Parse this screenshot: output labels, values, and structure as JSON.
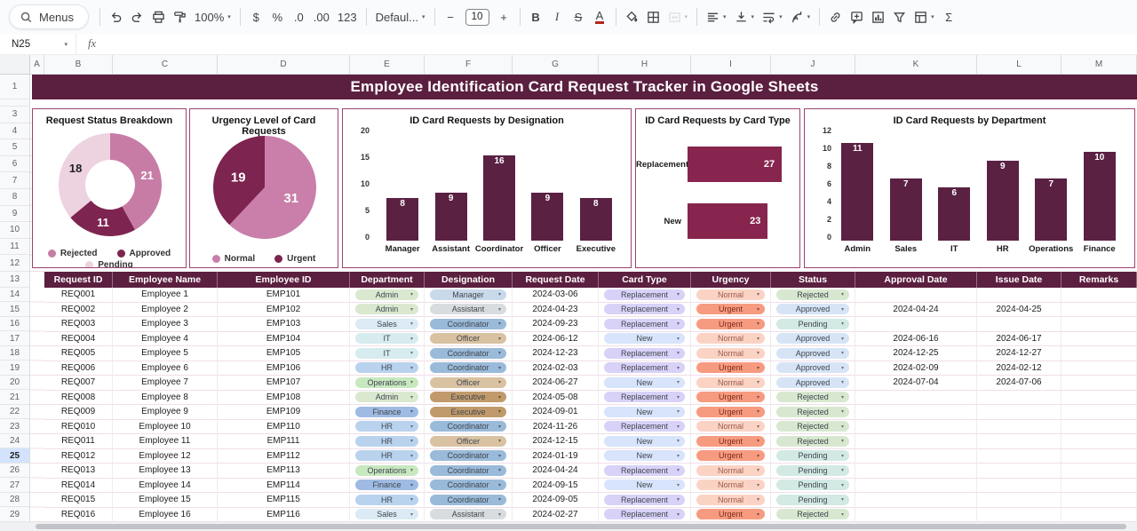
{
  "toolbar": {
    "groups": [
      [
        {
          "name": "menus-search",
          "label": "Menus",
          "icon": "search",
          "pill": true
        }
      ],
      [
        {
          "name": "undo",
          "icon": "undo"
        },
        {
          "name": "redo",
          "icon": "redo"
        },
        {
          "name": "print",
          "icon": "print"
        },
        {
          "name": "paint-format",
          "icon": "paint-roller"
        },
        {
          "name": "zoom-select",
          "label": "100%",
          "dropdown": true
        }
      ],
      [
        {
          "name": "format-currency",
          "label": "$"
        },
        {
          "name": "format-percent",
          "label": "%"
        },
        {
          "name": "decrease-decimal-places",
          "label": ".0"
        },
        {
          "name": "increase-decimal-places",
          "label": ".00"
        },
        {
          "name": "more-formats",
          "label": "123"
        }
      ],
      [
        {
          "name": "font-family-select",
          "label": "Defaul...",
          "dropdown": true
        }
      ],
      [
        {
          "name": "decrease-font-size",
          "label": "−"
        },
        {
          "name": "font-size-input",
          "label": "10",
          "box": true
        },
        {
          "name": "increase-font-size",
          "label": "+"
        }
      ],
      [
        {
          "name": "bold",
          "label": "B",
          "bold": true
        },
        {
          "name": "italic",
          "label": "I",
          "italic": true
        },
        {
          "name": "strikethrough",
          "label": "S",
          "strike": true
        },
        {
          "name": "text-color",
          "label": "A",
          "colorbar": true
        }
      ],
      [
        {
          "name": "fill-color",
          "icon": "fill"
        },
        {
          "name": "borders",
          "icon": "borders"
        },
        {
          "name": "merge-cells",
          "icon": "merge",
          "dropdown": true,
          "disabled": true
        }
      ],
      [
        {
          "name": "horizontal-align",
          "icon": "align-left",
          "dropdown": true
        },
        {
          "name": "vertical-align",
          "icon": "vertical-align",
          "dropdown": true
        },
        {
          "name": "text-wrap",
          "icon": "text-wrap",
          "dropdown": true
        },
        {
          "name": "text-rotation",
          "icon": "text-rotation",
          "dropdown": true
        }
      ],
      [
        {
          "name": "insert-link",
          "icon": "link"
        },
        {
          "name": "insert-comment",
          "icon": "comment"
        },
        {
          "name": "insert-chart",
          "icon": "chart"
        },
        {
          "name": "create-filter",
          "icon": "filter"
        },
        {
          "name": "table-views",
          "icon": "table",
          "dropdown": true
        },
        {
          "name": "functions",
          "label": "Σ"
        }
      ]
    ]
  },
  "formula_bar": {
    "name_box": "N25",
    "fx_label": "fx"
  },
  "sheet": {
    "title": "Employee Identification Card Request Tracker in Google Sheets",
    "column_letters": [
      "A",
      "B",
      "C",
      "D",
      "E",
      "F",
      "G",
      "H",
      "I",
      "J",
      "K",
      "L",
      "M"
    ],
    "selected_row": 25
  },
  "colors": {
    "maroon": "#5b1f3f",
    "chart_border": "#9c4270",
    "column_bar": "#5a2143",
    "hbar_bar": "#87254f",
    "selected_row_bg": "#d3e3fd"
  },
  "charts": [
    {
      "type": "donut",
      "title": "Request Status Breakdown",
      "segments": [
        {
          "label": "Rejected",
          "value": 21,
          "color": "#c77ca6",
          "text": "#ffffff"
        },
        {
          "label": "Approved",
          "value": 11,
          "color": "#7e2450",
          "text": "#ffffff"
        },
        {
          "label": "Pending",
          "value": 18,
          "color": "#edd2e0",
          "text": "#222222"
        }
      ]
    },
    {
      "type": "pie",
      "title": "Urgency Level of Card Requests",
      "segments": [
        {
          "label": "Normal",
          "value": 31,
          "color": "#c97fa9",
          "text": "#ffffff"
        },
        {
          "label": "Urgent",
          "value": 19,
          "color": "#7d2450",
          "text": "#ffffff"
        }
      ]
    },
    {
      "type": "column",
      "title": "ID Card Requests by Designation",
      "categories": [
        "Manager",
        "Assistant",
        "Coordinator",
        "Officer",
        "Executive"
      ],
      "values": [
        8,
        9,
        16,
        9,
        8
      ],
      "ymax": 20,
      "yticks": [
        0,
        5,
        10,
        15,
        20
      ]
    },
    {
      "type": "hbar",
      "title": "ID Card Requests by Card Type",
      "categories": [
        "Replacement",
        "New"
      ],
      "values": [
        27,
        23
      ],
      "xmax": 28.5
    },
    {
      "type": "column",
      "title": "ID Card Requests by Department",
      "categories": [
        "Admin",
        "Sales",
        "IT",
        "HR",
        "Operations",
        "Finance"
      ],
      "values": [
        11,
        7,
        6,
        9,
        7,
        10
      ],
      "ymax": 12,
      "yticks": [
        0,
        2,
        4,
        6,
        8,
        10,
        12
      ]
    }
  ],
  "table": {
    "columns": [
      "Request ID",
      "Employee Name",
      "Employee ID",
      "Department",
      "Designation",
      "Request Date",
      "Card Type",
      "Urgency",
      "Status",
      "Approval Date",
      "Issue Date",
      "Remarks"
    ],
    "rows": [
      {
        "request_id": "REQ001",
        "employee_name": "Employee 1",
        "employee_id": "EMP101",
        "department": "Admin",
        "designation": "Manager",
        "request_date": "2024-03-06",
        "card_type": "Replacement",
        "urgency": "Normal",
        "status": "Rejected",
        "approval_date": "",
        "issue_date": "",
        "remarks": ""
      },
      {
        "request_id": "REQ002",
        "employee_name": "Employee 2",
        "employee_id": "EMP102",
        "department": "Admin",
        "designation": "Assistant",
        "request_date": "2024-04-23",
        "card_type": "Replacement",
        "urgency": "Urgent",
        "status": "Approved",
        "approval_date": "2024-04-24",
        "issue_date": "2024-04-25",
        "remarks": ""
      },
      {
        "request_id": "REQ003",
        "employee_name": "Employee 3",
        "employee_id": "EMP103",
        "department": "Sales",
        "designation": "Coordinator",
        "request_date": "2024-09-23",
        "card_type": "Replacement",
        "urgency": "Urgent",
        "status": "Pending",
        "approval_date": "",
        "issue_date": "",
        "remarks": ""
      },
      {
        "request_id": "REQ004",
        "employee_name": "Employee 4",
        "employee_id": "EMP104",
        "department": "IT",
        "designation": "Officer",
        "request_date": "2024-06-12",
        "card_type": "New",
        "urgency": "Normal",
        "status": "Approved",
        "approval_date": "2024-06-16",
        "issue_date": "2024-06-17",
        "remarks": ""
      },
      {
        "request_id": "REQ005",
        "employee_name": "Employee 5",
        "employee_id": "EMP105",
        "department": "IT",
        "designation": "Coordinator",
        "request_date": "2024-12-23",
        "card_type": "Replacement",
        "urgency": "Normal",
        "status": "Approved",
        "approval_date": "2024-12-25",
        "issue_date": "2024-12-27",
        "remarks": ""
      },
      {
        "request_id": "REQ006",
        "employee_name": "Employee 6",
        "employee_id": "EMP106",
        "department": "HR",
        "designation": "Coordinator",
        "request_date": "2024-02-03",
        "card_type": "Replacement",
        "urgency": "Urgent",
        "status": "Approved",
        "approval_date": "2024-02-09",
        "issue_date": "2024-02-12",
        "remarks": ""
      },
      {
        "request_id": "REQ007",
        "employee_name": "Employee 7",
        "employee_id": "EMP107",
        "department": "Operations",
        "designation": "Officer",
        "request_date": "2024-06-27",
        "card_type": "New",
        "urgency": "Normal",
        "status": "Approved",
        "approval_date": "2024-07-04",
        "issue_date": "2024-07-06",
        "remarks": ""
      },
      {
        "request_id": "REQ008",
        "employee_name": "Employee 8",
        "employee_id": "EMP108",
        "department": "Admin",
        "designation": "Executive",
        "request_date": "2024-05-08",
        "card_type": "Replacement",
        "urgency": "Urgent",
        "status": "Rejected",
        "approval_date": "",
        "issue_date": "",
        "remarks": ""
      },
      {
        "request_id": "REQ009",
        "employee_name": "Employee 9",
        "employee_id": "EMP109",
        "department": "Finance",
        "designation": "Executive",
        "request_date": "2024-09-01",
        "card_type": "New",
        "urgency": "Urgent",
        "status": "Rejected",
        "approval_date": "",
        "issue_date": "",
        "remarks": ""
      },
      {
        "request_id": "REQ010",
        "employee_name": "Employee 10",
        "employee_id": "EMP110",
        "department": "HR",
        "designation": "Coordinator",
        "request_date": "2024-11-26",
        "card_type": "Replacement",
        "urgency": "Normal",
        "status": "Rejected",
        "approval_date": "",
        "issue_date": "",
        "remarks": ""
      },
      {
        "request_id": "REQ011",
        "employee_name": "Employee 11",
        "employee_id": "EMP111",
        "department": "HR",
        "designation": "Officer",
        "request_date": "2024-12-15",
        "card_type": "New",
        "urgency": "Urgent",
        "status": "Rejected",
        "approval_date": "",
        "issue_date": "",
        "remarks": ""
      },
      {
        "request_id": "REQ012",
        "employee_name": "Employee 12",
        "employee_id": "EMP112",
        "department": "HR",
        "designation": "Coordinator",
        "request_date": "2024-01-19",
        "card_type": "New",
        "urgency": "Urgent",
        "status": "Pending",
        "approval_date": "",
        "issue_date": "",
        "remarks": ""
      },
      {
        "request_id": "REQ013",
        "employee_name": "Employee 13",
        "employee_id": "EMP113",
        "department": "Operations",
        "designation": "Coordinator",
        "request_date": "2024-04-24",
        "card_type": "Replacement",
        "urgency": "Normal",
        "status": "Pending",
        "approval_date": "",
        "issue_date": "",
        "remarks": ""
      },
      {
        "request_id": "REQ014",
        "employee_name": "Employee 14",
        "employee_id": "EMP114",
        "department": "Finance",
        "designation": "Coordinator",
        "request_date": "2024-09-15",
        "card_type": "New",
        "urgency": "Normal",
        "status": "Pending",
        "approval_date": "",
        "issue_date": "",
        "remarks": ""
      },
      {
        "request_id": "REQ015",
        "employee_name": "Employee 15",
        "employee_id": "EMP115",
        "department": "HR",
        "designation": "Coordinator",
        "request_date": "2024-09-05",
        "card_type": "Replacement",
        "urgency": "Normal",
        "status": "Pending",
        "approval_date": "",
        "issue_date": "",
        "remarks": ""
      },
      {
        "request_id": "REQ016",
        "employee_name": "Employee 16",
        "employee_id": "EMP116",
        "department": "Sales",
        "designation": "Assistant",
        "request_date": "2024-02-27",
        "card_type": "Replacement",
        "urgency": "Urgent",
        "status": "Rejected",
        "approval_date": "",
        "issue_date": "",
        "remarks": ""
      }
    ]
  },
  "pill_colors": {
    "department": {
      "Admin": "#d9e8cf",
      "Sales": "#dbeaf4",
      "IT": "#d6ecee",
      "HR": "#b9d3ee",
      "Operations": "#c8e8c0",
      "Finance": "#9fbbe3"
    },
    "designation": {
      "Manager": "#c8d9ea",
      "Assistant": "#d9dcde",
      "Coordinator": "#9abad9",
      "Officer": "#d9c2a1",
      "Executive": "#c19a6b"
    },
    "card_type": {
      "Replacement": "#d8d2f8",
      "New": "#d8e4fb"
    },
    "urgency": {
      "Normal": "#fbd3c5",
      "Urgent": "#f79b80"
    },
    "status": {
      "Rejected": "#d8e8d0",
      "Approved": "#d6e4f6",
      "Pending": "#d2e9e4"
    }
  },
  "pill_text_colors": {
    "Urgent": "#7b2c1b",
    "Normal": "#9c5a48"
  }
}
